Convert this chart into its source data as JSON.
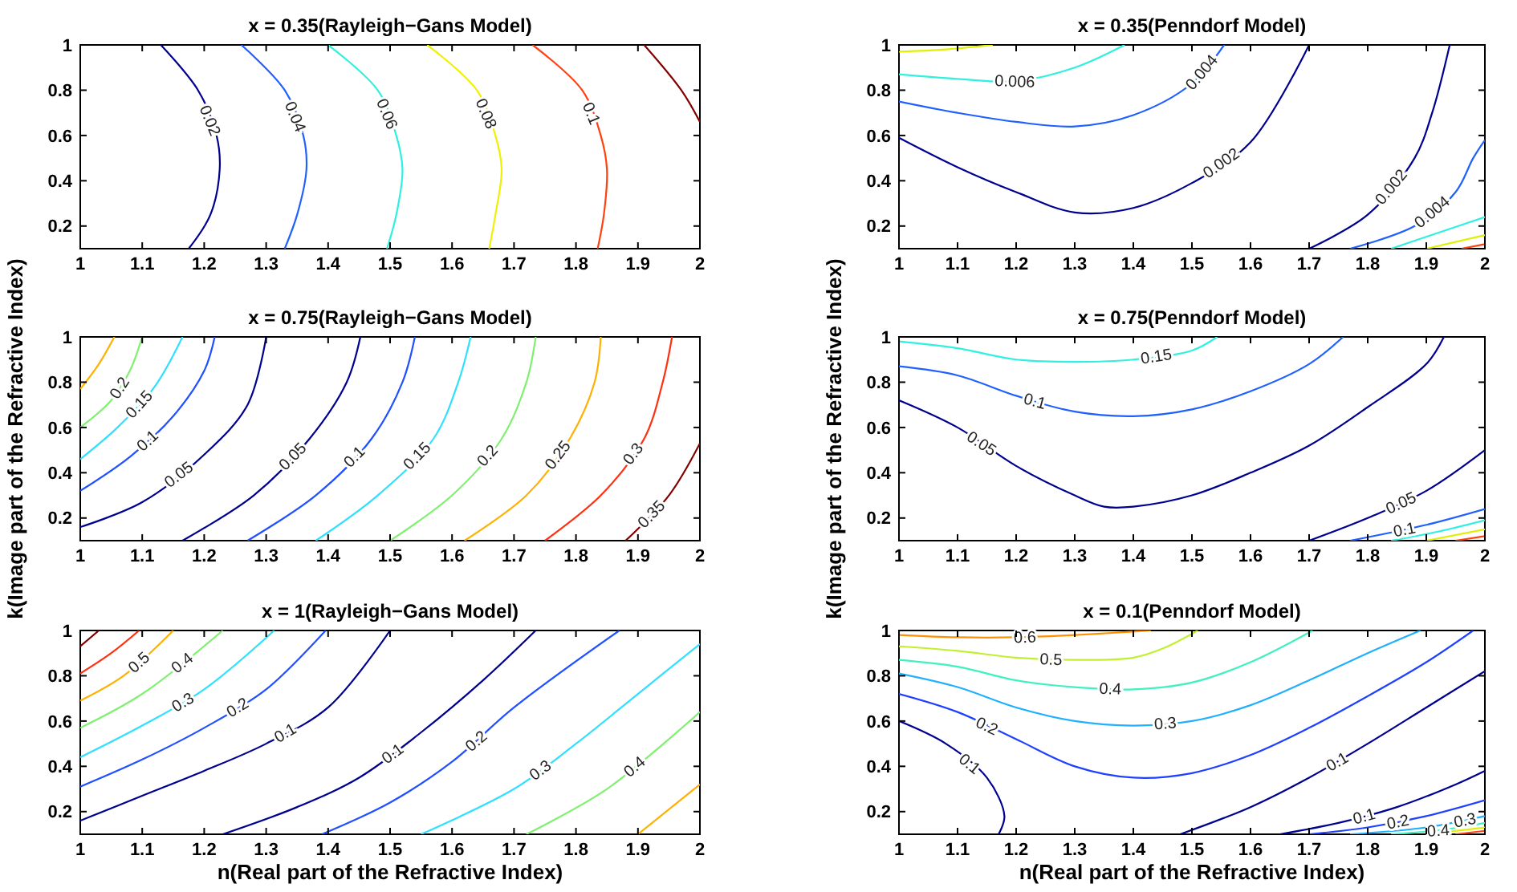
{
  "chart_data": [
    {
      "type": "line",
      "title": "x = 0.35(Rayleigh−Gans Model)",
      "xlim": [
        1,
        2
      ],
      "ylim": [
        0.1,
        1
      ],
      "xticks": [
        1,
        1.1,
        1.2,
        1.3,
        1.4,
        1.5,
        1.6,
        1.7,
        1.8,
        1.9,
        2
      ],
      "yticks": [
        0.2,
        0.4,
        0.6,
        0.8,
        1
      ],
      "grid": false,
      "series": [
        {
          "name": "0.02",
          "color": "#00008f",
          "x": [
            1.13,
            1.19,
            1.22,
            1.225,
            1.21,
            1.175
          ],
          "values": [
            1,
            0.8,
            0.6,
            0.45,
            0.25,
            0.1
          ]
        },
        {
          "name": "0.04",
          "color": "#2060ff",
          "x": [
            1.26,
            1.33,
            1.36,
            1.365,
            1.35,
            1.33
          ],
          "values": [
            1,
            0.8,
            0.6,
            0.45,
            0.25,
            0.1
          ]
        },
        {
          "name": "0.06",
          "color": "#30f0e0",
          "x": [
            1.4,
            1.48,
            1.51,
            1.52,
            1.51,
            1.495
          ],
          "values": [
            1,
            0.8,
            0.6,
            0.45,
            0.25,
            0.1
          ]
        },
        {
          "name": "0.08",
          "color": "#f0f000",
          "x": [
            1.56,
            1.64,
            1.67,
            1.68,
            1.67,
            1.66
          ],
          "values": [
            1,
            0.8,
            0.6,
            0.45,
            0.25,
            0.1
          ]
        },
        {
          "name": "0.1",
          "color": "#ff4010",
          "x": [
            1.73,
            1.81,
            1.84,
            1.85,
            1.845,
            1.835
          ],
          "values": [
            1,
            0.8,
            0.6,
            0.45,
            0.25,
            0.1
          ]
        },
        {
          "color": "#800000",
          "x": [
            1.91,
            1.97,
            2
          ],
          "values": [
            1,
            0.8,
            0.66
          ]
        }
      ]
    },
    {
      "type": "line",
      "title": "x = 0.35(Penndorf Model)",
      "xlim": [
        1,
        2
      ],
      "ylim": [
        0.1,
        1
      ],
      "xticks": [
        1,
        1.1,
        1.2,
        1.3,
        1.4,
        1.5,
        1.6,
        1.7,
        1.8,
        1.9,
        2
      ],
      "yticks": [
        0.2,
        0.4,
        0.6,
        0.8,
        1
      ],
      "grid": false,
      "series": [
        {
          "color": "#e0f000",
          "x": [
            1,
            1.08,
            1.16
          ],
          "values": [
            0.97,
            0.98,
            1
          ]
        },
        {
          "name": "0.006",
          "color": "#30f0e0",
          "x": [
            1,
            1.1,
            1.2,
            1.3,
            1.385
          ],
          "values": [
            0.87,
            0.85,
            0.84,
            0.9,
            1
          ]
        },
        {
          "name": "0.004",
          "color": "#2060ff",
          "x": [
            1,
            1.1,
            1.2,
            1.3,
            1.4,
            1.5,
            1.555
          ],
          "values": [
            0.75,
            0.7,
            0.66,
            0.64,
            0.69,
            0.83,
            1
          ]
        },
        {
          "name": "0.002",
          "color": "#00008f",
          "x": [
            1,
            1.1,
            1.2,
            1.3,
            1.4,
            1.5,
            1.6,
            1.7
          ],
          "values": [
            0.59,
            0.46,
            0.35,
            0.26,
            0.28,
            0.39,
            0.57,
            1
          ]
        },
        {
          "name": "0.002",
          "color": "#00008f",
          "x": [
            1.7,
            1.8,
            1.88,
            1.91,
            1.94
          ],
          "values": [
            0.1,
            0.25,
            0.5,
            0.7,
            1
          ]
        },
        {
          "name": "0.004",
          "color": "#2060ff",
          "x": [
            1.77,
            1.88,
            1.95,
            1.98,
            2
          ],
          "values": [
            0.1,
            0.2,
            0.35,
            0.5,
            0.58
          ]
        },
        {
          "color": "#30f0e0",
          "x": [
            1.84,
            1.92,
            2
          ],
          "values": [
            0.1,
            0.17,
            0.24
          ]
        },
        {
          "color": "#e0f000",
          "x": [
            1.9,
            2
          ],
          "values": [
            0.1,
            0.16
          ]
        },
        {
          "color": "#ff4010",
          "x": [
            1.96,
            2
          ],
          "values": [
            0.1,
            0.12
          ]
        }
      ]
    },
    {
      "type": "line",
      "title": "x = 0.75(Rayleigh−Gans Model)",
      "ylabel": "k(Image part of the Refractive Index)",
      "xlim": [
        1,
        2
      ],
      "ylim": [
        0.1,
        1
      ],
      "xticks": [
        1,
        1.1,
        1.2,
        1.3,
        1.4,
        1.5,
        1.6,
        1.7,
        1.8,
        1.9,
        2
      ],
      "yticks": [
        0.2,
        0.4,
        0.6,
        0.8,
        1
      ],
      "grid": false,
      "series": [
        {
          "color": "#ffb000",
          "x": [
            1,
            1.03,
            1.055
          ],
          "values": [
            0.77,
            0.88,
            1
          ]
        },
        {
          "name": "0.2",
          "color": "#80f070",
          "x": [
            1,
            1.05,
            1.08,
            1.1
          ],
          "values": [
            0.6,
            0.72,
            0.85,
            1
          ]
        },
        {
          "name": "0.15",
          "color": "#30e0ff",
          "x": [
            1,
            1.06,
            1.12,
            1.165
          ],
          "values": [
            0.46,
            0.6,
            0.78,
            1
          ]
        },
        {
          "name": "0.1",
          "color": "#2050ff",
          "x": [
            1,
            1.08,
            1.15,
            1.2,
            1.217
          ],
          "values": [
            0.32,
            0.47,
            0.65,
            0.85,
            1
          ]
        },
        {
          "name": "0.05",
          "color": "#00008f",
          "x": [
            1,
            1.1,
            1.2,
            1.27,
            1.3
          ],
          "values": [
            0.16,
            0.27,
            0.48,
            0.7,
            1
          ]
        },
        {
          "name": "0.05",
          "color": "#00008f",
          "x": [
            1.165,
            1.28,
            1.37,
            1.43,
            1.452
          ],
          "values": [
            0.1,
            0.3,
            0.55,
            0.8,
            1
          ]
        },
        {
          "name": "0.1",
          "color": "#2050ff",
          "x": [
            1.27,
            1.38,
            1.47,
            1.52,
            1.54
          ],
          "values": [
            0.1,
            0.3,
            0.55,
            0.8,
            1
          ]
        },
        {
          "name": "0.15",
          "color": "#30e0ff",
          "x": [
            1.38,
            1.48,
            1.57,
            1.61,
            1.63
          ],
          "values": [
            0.1,
            0.3,
            0.55,
            0.8,
            1
          ]
        },
        {
          "name": "0.2",
          "color": "#80f070",
          "x": [
            1.5,
            1.6,
            1.68,
            1.72,
            1.735
          ],
          "values": [
            0.1,
            0.3,
            0.55,
            0.8,
            1
          ]
        },
        {
          "name": "0.25",
          "color": "#ffb000",
          "x": [
            1.62,
            1.72,
            1.79,
            1.83,
            1.84
          ],
          "values": [
            0.1,
            0.3,
            0.55,
            0.8,
            1
          ]
        },
        {
          "name": "0.3",
          "color": "#ff3010",
          "x": [
            1.75,
            1.84,
            1.91,
            1.94,
            1.955
          ],
          "values": [
            0.1,
            0.3,
            0.55,
            0.8,
            1
          ]
        },
        {
          "name": "0.35",
          "color": "#800000",
          "x": [
            1.88,
            1.95,
            2
          ],
          "values": [
            0.1,
            0.3,
            0.53
          ]
        }
      ]
    },
    {
      "type": "line",
      "title": "x = 0.75(Penndorf Model)",
      "ylabel": "k(Image part of the Refractive Index)",
      "xlim": [
        1,
        2
      ],
      "ylim": [
        0.1,
        1
      ],
      "xticks": [
        1,
        1.1,
        1.2,
        1.3,
        1.4,
        1.5,
        1.6,
        1.7,
        1.8,
        1.9,
        2
      ],
      "yticks": [
        0.2,
        0.4,
        0.6,
        0.8,
        1
      ],
      "grid": false,
      "series": [
        {
          "name": "0.15",
          "color": "#30f0e0",
          "x": [
            1,
            1.1,
            1.2,
            1.3,
            1.4,
            1.5,
            1.543
          ],
          "values": [
            0.98,
            0.95,
            0.9,
            0.89,
            0.9,
            0.94,
            1
          ]
        },
        {
          "name": "0.1",
          "color": "#2060ff",
          "x": [
            1,
            1.1,
            1.2,
            1.3,
            1.4,
            1.5,
            1.6,
            1.7,
            1.758
          ],
          "values": [
            0.87,
            0.83,
            0.74,
            0.67,
            0.65,
            0.68,
            0.76,
            0.88,
            1
          ]
        },
        {
          "name": "0.05",
          "color": "#00008f",
          "x": [
            1,
            1.1,
            1.2,
            1.3,
            1.35,
            1.4,
            1.5,
            1.6,
            1.7,
            1.8,
            1.9,
            1.93
          ],
          "values": [
            0.72,
            0.6,
            0.43,
            0.3,
            0.25,
            0.25,
            0.3,
            0.4,
            0.52,
            0.69,
            0.88,
            1
          ]
        },
        {
          "name": "0.05",
          "color": "#00008f",
          "x": [
            1.7,
            1.8,
            1.9,
            2
          ],
          "values": [
            0.1,
            0.2,
            0.32,
            0.5
          ]
        },
        {
          "name": "0.1",
          "color": "#2060ff",
          "x": [
            1.77,
            1.9,
            2
          ],
          "values": [
            0.1,
            0.17,
            0.24
          ]
        },
        {
          "color": "#30f0e0",
          "x": [
            1.84,
            1.92,
            2
          ],
          "values": [
            0.1,
            0.14,
            0.19
          ]
        },
        {
          "color": "#e0f000",
          "x": [
            1.9,
            2
          ],
          "values": [
            0.1,
            0.15
          ]
        },
        {
          "color": "#ff4010",
          "x": [
            1.95,
            2
          ],
          "values": [
            0.1,
            0.12
          ]
        }
      ]
    },
    {
      "type": "line",
      "title": "x = 1(Rayleigh−Gans Model)",
      "xlabel": "n(Real part of the Refractive Index)",
      "xlim": [
        1,
        2
      ],
      "ylim": [
        0.1,
        1
      ],
      "xticks": [
        1,
        1.1,
        1.2,
        1.3,
        1.4,
        1.5,
        1.6,
        1.7,
        1.8,
        1.9,
        2
      ],
      "yticks": [
        0.2,
        0.4,
        0.6,
        0.8,
        1
      ],
      "grid": false,
      "series": [
        {
          "color": "#800000",
          "x": [
            1,
            1.03
          ],
          "values": [
            0.93,
            1
          ]
        },
        {
          "color": "#ff3010",
          "x": [
            1,
            1.05,
            1.095
          ],
          "values": [
            0.81,
            0.9,
            1
          ]
        },
        {
          "name": "0.5",
          "color": "#ffb000",
          "x": [
            1,
            1.07,
            1.15
          ],
          "values": [
            0.69,
            0.8,
            1
          ]
        },
        {
          "name": "0.4",
          "color": "#80f070",
          "x": [
            1,
            1.1,
            1.23
          ],
          "values": [
            0.57,
            0.72,
            1
          ]
        },
        {
          "name": "0.3",
          "color": "#30e0ff",
          "x": [
            1,
            1.1,
            1.2,
            1.313
          ],
          "values": [
            0.44,
            0.58,
            0.74,
            1
          ]
        },
        {
          "name": "0.2",
          "color": "#2050ff",
          "x": [
            1,
            1.1,
            1.2,
            1.3,
            1.396
          ],
          "values": [
            0.31,
            0.43,
            0.57,
            0.74,
            1
          ]
        },
        {
          "name": "0.1",
          "color": "#00008f",
          "x": [
            1,
            1.1,
            1.2,
            1.3,
            1.4,
            1.5
          ],
          "values": [
            0.16,
            0.27,
            0.38,
            0.5,
            0.66,
            1
          ]
        },
        {
          "name": "0.1",
          "color": "#00008f",
          "x": [
            1.23,
            1.35,
            1.45,
            1.55,
            1.65,
            1.735
          ],
          "values": [
            0.1,
            0.22,
            0.35,
            0.55,
            0.78,
            1
          ]
        },
        {
          "name": "0.2",
          "color": "#2050ff",
          "x": [
            1.39,
            1.5,
            1.6,
            1.7,
            1.87
          ],
          "values": [
            0.1,
            0.24,
            0.42,
            0.66,
            1
          ]
        },
        {
          "name": "0.3",
          "color": "#30e0ff",
          "x": [
            1.55,
            1.7,
            1.8,
            1.9,
            2
          ],
          "values": [
            0.1,
            0.3,
            0.5,
            0.72,
            0.94
          ]
        },
        {
          "name": "0.4",
          "color": "#80f070",
          "x": [
            1.72,
            1.85,
            2
          ],
          "values": [
            0.1,
            0.3,
            0.64
          ]
        },
        {
          "color": "#ffb000",
          "x": [
            1.9,
            2
          ],
          "values": [
            0.1,
            0.32
          ]
        }
      ]
    },
    {
      "type": "line",
      "title": "x = 0.1(Penndorf Model)",
      "xlabel": "n(Real part of the Refractive Index)",
      "xlim": [
        1,
        2
      ],
      "ylim": [
        0.1,
        1
      ],
      "xticks": [
        1,
        1.1,
        1.2,
        1.3,
        1.4,
        1.5,
        1.6,
        1.7,
        1.8,
        1.9,
        2
      ],
      "yticks": [
        0.2,
        0.4,
        0.6,
        0.8,
        1
      ],
      "grid": false,
      "series": [
        {
          "name": "0.6",
          "color": "#ff9000",
          "x": [
            1,
            1.1,
            1.2,
            1.3,
            1.43
          ],
          "values": [
            0.98,
            0.97,
            0.97,
            0.98,
            1
          ]
        },
        {
          "name": "0.5",
          "color": "#c0f030",
          "x": [
            1,
            1.1,
            1.2,
            1.3,
            1.4,
            1.45,
            1.51
          ],
          "values": [
            0.93,
            0.91,
            0.88,
            0.87,
            0.88,
            0.92,
            1
          ]
        },
        {
          "name": "0.4",
          "color": "#40f0c0",
          "x": [
            1,
            1.1,
            1.2,
            1.3,
            1.4,
            1.5,
            1.6,
            1.706
          ],
          "values": [
            0.87,
            0.84,
            0.78,
            0.75,
            0.74,
            0.77,
            0.86,
            1
          ]
        },
        {
          "name": "0.3",
          "color": "#20b0ff",
          "x": [
            1,
            1.1,
            1.2,
            1.3,
            1.4,
            1.5,
            1.6,
            1.7,
            1.8,
            1.89
          ],
          "values": [
            0.81,
            0.75,
            0.66,
            0.6,
            0.58,
            0.6,
            0.67,
            0.78,
            0.9,
            1
          ]
        },
        {
          "name": "0.2",
          "color": "#2040ff",
          "x": [
            1,
            1.1,
            1.2,
            1.3,
            1.4,
            1.5,
            1.6,
            1.7,
            1.8,
            1.9,
            1.98
          ],
          "values": [
            0.72,
            0.64,
            0.52,
            0.4,
            0.35,
            0.37,
            0.45,
            0.57,
            0.71,
            0.86,
            1
          ]
        },
        {
          "name": "0.1",
          "color": "#00008f",
          "x": [
            1,
            1.08,
            1.15,
            1.18,
            1.17
          ],
          "values": [
            0.6,
            0.5,
            0.35,
            0.18,
            0.1
          ]
        },
        {
          "name": "0.1",
          "color": "#00008f",
          "x": [
            1.48,
            1.6,
            1.7,
            1.8,
            1.9,
            2
          ],
          "values": [
            0.1,
            0.22,
            0.35,
            0.5,
            0.66,
            0.82
          ]
        },
        {
          "name": "0.1",
          "color": "#00008f",
          "x": [
            1.65,
            1.75,
            1.85,
            1.95,
            2
          ],
          "values": [
            0.1,
            0.15,
            0.22,
            0.32,
            0.38
          ]
        },
        {
          "name": "0.2",
          "color": "#2040ff",
          "x": [
            1.7,
            1.8,
            1.9,
            2
          ],
          "values": [
            0.1,
            0.13,
            0.18,
            0.25
          ]
        },
        {
          "name": "0.3",
          "color": "#20b0ff",
          "x": [
            1.77,
            1.9,
            2
          ],
          "values": [
            0.1,
            0.13,
            0.18
          ]
        },
        {
          "name": "0.4",
          "color": "#40f0c0",
          "x": [
            1.84,
            1.93,
            2
          ],
          "values": [
            0.1,
            0.12,
            0.15
          ]
        },
        {
          "color": "#e0f000",
          "x": [
            1.9,
            2
          ],
          "values": [
            0.1,
            0.13
          ]
        },
        {
          "color": "#ff4010",
          "x": [
            1.95,
            2
          ],
          "values": [
            0.1,
            0.115
          ]
        }
      ]
    }
  ]
}
